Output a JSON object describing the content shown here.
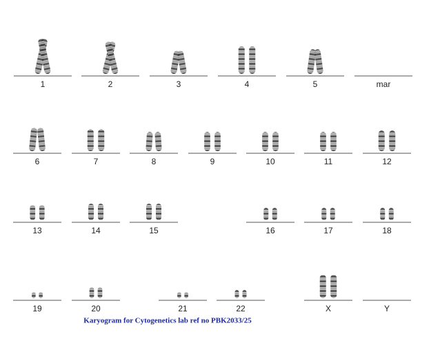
{
  "groups": [
    {
      "label": "1"
    },
    {
      "label": "2"
    },
    {
      "label": "3"
    },
    {
      "label": "4"
    },
    {
      "label": "5"
    },
    {
      "label": "mar"
    },
    {
      "label": "6"
    },
    {
      "label": "7"
    },
    {
      "label": "8"
    },
    {
      "label": "9"
    },
    {
      "label": "10"
    },
    {
      "label": "11"
    },
    {
      "label": "12"
    },
    {
      "label": "13"
    },
    {
      "label": "14"
    },
    {
      "label": "15"
    },
    {
      "label": "16"
    },
    {
      "label": "17"
    },
    {
      "label": "18"
    },
    {
      "label": "19"
    },
    {
      "label": "20"
    },
    {
      "label": "21"
    },
    {
      "label": "22"
    },
    {
      "label": "X"
    },
    {
      "label": "Y"
    }
  ],
  "caption": "Karyogram for Cytogenetics lab ref no PBK2033/25"
}
